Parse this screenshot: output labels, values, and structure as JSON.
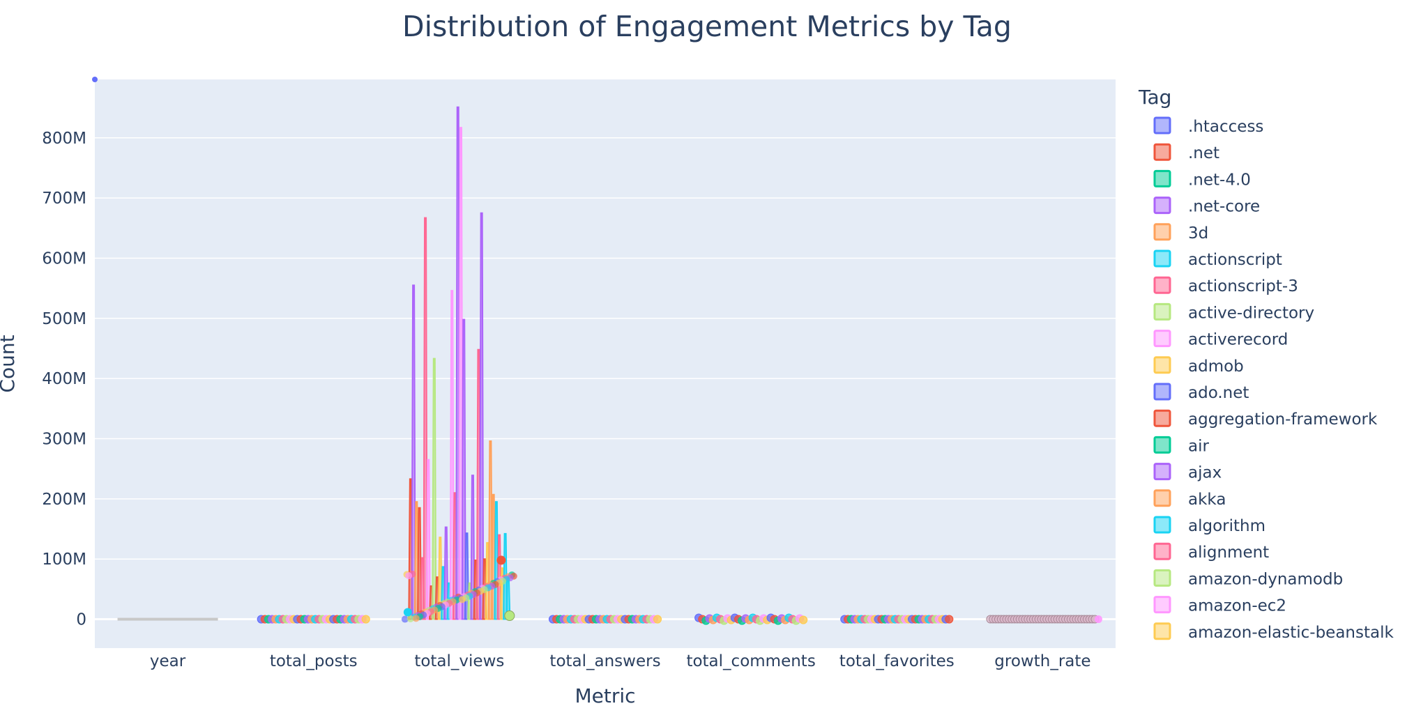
{
  "chart_data": {
    "type": "violin",
    "title": "Distribution of Engagement Metrics by Tag",
    "xlabel": "Metric",
    "ylabel": "Count",
    "categories": [
      "year",
      "total_posts",
      "total_views",
      "total_answers",
      "total_comments",
      "total_favorites",
      "growth_rate"
    ],
    "y_tick_labels": [
      "0",
      "100M",
      "200M",
      "300M",
      "400M",
      "500M",
      "600M",
      "700M",
      "800M"
    ],
    "y_tick_values": [
      0,
      100000000,
      200000000,
      300000000,
      400000000,
      500000000,
      600000000,
      700000000,
      800000000
    ],
    "ylim": [
      -48000000,
      897000000
    ],
    "grid": true,
    "legend_placement": "right",
    "legend_title": "Tag",
    "series": [
      {
        "name": ".htaccess",
        "color": "#636efa"
      },
      {
        "name": ".net",
        "color": "#EF553B"
      },
      {
        "name": ".net-4.0",
        "color": "#00cc96"
      },
      {
        "name": ".net-core",
        "color": "#ab63fa"
      },
      {
        "name": "3d",
        "color": "#FFA15A"
      },
      {
        "name": "actionscript",
        "color": "#19d3f3"
      },
      {
        "name": "actionscript-3",
        "color": "#FF6692"
      },
      {
        "name": "active-directory",
        "color": "#B6E880"
      },
      {
        "name": "activerecord",
        "color": "#FF97FF"
      },
      {
        "name": "admob",
        "color": "#FECB52"
      },
      {
        "name": "ado.net",
        "color": "#636efa"
      },
      {
        "name": "aggregation-framework",
        "color": "#EF553B"
      },
      {
        "name": "air",
        "color": "#00cc96"
      },
      {
        "name": "ajax",
        "color": "#ab63fa"
      },
      {
        "name": "akka",
        "color": "#FFA15A"
      },
      {
        "name": "algorithm",
        "color": "#19d3f3"
      },
      {
        "name": "alignment",
        "color": "#FF6692"
      },
      {
        "name": "amazon-dynamodb",
        "color": "#B6E880"
      },
      {
        "name": "amazon-ec2",
        "color": "#FF97FF"
      },
      {
        "name": "amazon-elastic-beanstalk",
        "color": "#FECB52"
      }
    ],
    "total_views_spikes": [
      {
        "series": 1,
        "value": 233000000
      },
      {
        "series": 3,
        "value": 555000000
      },
      {
        "series": 4,
        "value": 195000000
      },
      {
        "series": 1,
        "value": 185000000
      },
      {
        "series": 6,
        "value": 102000000
      },
      {
        "series": 6,
        "value": 667000000
      },
      {
        "series": 8,
        "value": 265000000
      },
      {
        "series": 1,
        "value": 55000000
      },
      {
        "series": 7,
        "value": 433000000
      },
      {
        "series": 11,
        "value": 70000000
      },
      {
        "series": 9,
        "value": 136000000
      },
      {
        "series": 15,
        "value": 87000000
      },
      {
        "series": 13,
        "value": 153000000
      },
      {
        "series": 5,
        "value": 60000000
      },
      {
        "series": 18,
        "value": 546000000
      },
      {
        "series": 16,
        "value": 210000000
      },
      {
        "series": 3,
        "value": 851000000
      },
      {
        "series": 8,
        "value": 817000000
      },
      {
        "series": 13,
        "value": 498000000
      },
      {
        "series": 10,
        "value": 143000000
      },
      {
        "series": 17,
        "value": 60000000
      },
      {
        "series": 3,
        "value": 239000000
      },
      {
        "series": 1,
        "value": 98000000
      },
      {
        "series": 6,
        "value": 448000000
      },
      {
        "series": 13,
        "value": 675000000
      },
      {
        "series": 11,
        "value": 100000000
      },
      {
        "series": 9,
        "value": 127000000
      },
      {
        "series": 14,
        "value": 296000000
      },
      {
        "series": 4,
        "value": 207000000
      },
      {
        "series": 5,
        "value": 195000000
      },
      {
        "series": 16,
        "value": 140000000
      },
      {
        "series": 9,
        "value": 85000000
      },
      {
        "series": 15,
        "value": 142000000
      },
      {
        "series": 5,
        "value": 70000000
      }
    ]
  }
}
